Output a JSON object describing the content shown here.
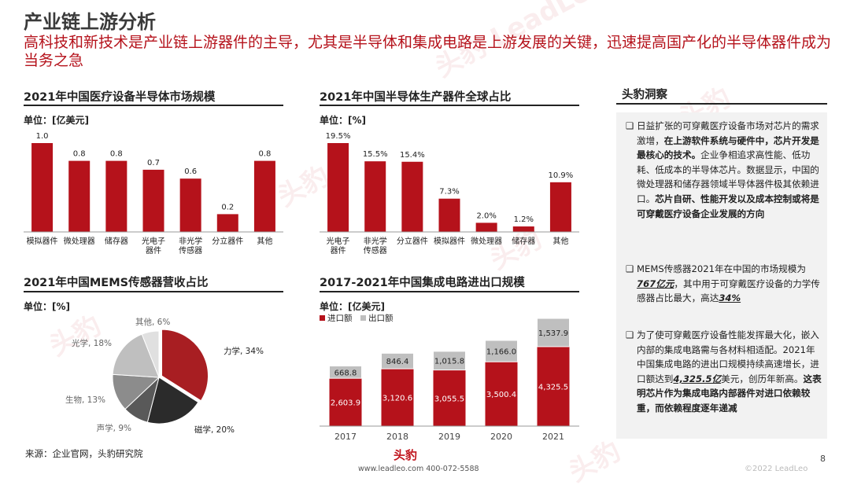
{
  "title": "产业链上游分析",
  "subtitle": "高科技和新技术是产业链上游器件的主导，尤其是半导体和集成电路是上游发展的关键，迅速提高国产化的半导体器件成为当务之急",
  "colors": {
    "primary": "#b5121b",
    "gray": "#b3b3b3",
    "dark": "#3d3d3d"
  },
  "charts_text": {
    "c1_title": "2021年中国医疗设备半导体市场规模",
    "c1_unit": "单位：[亿美元]",
    "c2_title": "2021年中国半导体生产器件全球占比",
    "c2_unit": "单位：[%]",
    "c3_title": "2021年中国MEMS传感器营收占比",
    "c3_unit": "单位：[%]",
    "c4_title": "2017-2021年中国集成电路进出口规模",
    "c4_unit": "单位：[亿美元]"
  },
  "chart_data": [
    {
      "type": "bar",
      "title": "2021年中国医疗设备半导体市场规模",
      "categories": [
        "模拟器件",
        "微处理器",
        "储存器",
        "光电子\n器件",
        "非光学\n传感器",
        "分立器件",
        "其他"
      ],
      "values": [
        1.0,
        0.8,
        0.8,
        0.7,
        0.6,
        0.2,
        0.8
      ],
      "labels": [
        "1.0",
        "0.8",
        "0.8",
        "0.7",
        "0.6",
        "0.2",
        "0.8"
      ],
      "ylim": [
        0,
        1.0
      ]
    },
    {
      "type": "bar",
      "title": "2021年中国半导体生产器件全球占比",
      "categories": [
        "光电子\n器件",
        "非光学\n传感器",
        "分立器件",
        "模拟器件",
        "微处理器",
        "储存器",
        "其他"
      ],
      "values": [
        19.5,
        15.5,
        15.4,
        7.3,
        2.0,
        1.2,
        10.9
      ],
      "labels": [
        "19.5%",
        "15.5%",
        "15.4%",
        "7.3%",
        "2.0%",
        "1.2%",
        "10.9%"
      ],
      "ylim": [
        0,
        19.5
      ]
    },
    {
      "type": "pie",
      "title": "2021年中国MEMS传感器营收占比",
      "slices": [
        {
          "name": "力学",
          "value": 34,
          "label": "力学, 34%",
          "color": "#a81e22"
        },
        {
          "name": "磁学",
          "value": 20,
          "label": "磁学, 20%",
          "color": "#2b2b2b"
        },
        {
          "name": "声学",
          "value": 9,
          "label": "声学, 9%",
          "color": "#595959"
        },
        {
          "name": "生物",
          "value": 13,
          "label": "生物, 13%",
          "color": "#8c8c8c"
        },
        {
          "name": "光学",
          "value": 18,
          "label": "光学, 18%",
          "color": "#bfbfbf"
        },
        {
          "name": "其他",
          "value": 6,
          "label": "其他, 6%",
          "color": "#e0e0e0"
        }
      ]
    },
    {
      "type": "bar",
      "title": "2017-2021年中国集成电路进出口规模",
      "stacked": true,
      "categories": [
        "2017",
        "2018",
        "2019",
        "2020",
        "2021"
      ],
      "series": [
        {
          "name": "进口额",
          "values": [
            2603.9,
            3120.6,
            3055.5,
            3500.4,
            4325.5
          ],
          "labels": [
            "2,603.9",
            "3,120.6",
            "3,055.5",
            "3,500.4",
            "4,325.5"
          ],
          "color": "#b5121b"
        },
        {
          "name": "出口额",
          "values": [
            668.8,
            846.4,
            1015.8,
            1166.0,
            1537.9
          ],
          "labels": [
            "668.8",
            "846.4",
            "1,015.8",
            "1,166.0",
            "1,537.9"
          ],
          "color": "#bfbfbf"
        }
      ],
      "legend": "top-left"
    }
  ],
  "insight": {
    "title": "头豹洞察",
    "items": [
      [
        {
          "t": "日益扩张的可穿戴医疗设备市场对芯片的需求激增，",
          "s": ""
        },
        {
          "t": "在上游软件系统与硬件中，芯片开发是最核心的技术。",
          "s": "b"
        },
        {
          "t": "企业争相追求高性能、低功耗、低成本的半导体芯片。数据显示，中国的微处理器和储存器领域半导体器件极其依赖进口。",
          "s": ""
        },
        {
          "t": "芯片自研、性能开发以及成本控制或将是可穿戴医疗设备企业发展的方向",
          "s": "b"
        }
      ],
      [
        {
          "t": "MEMS传感器2021年在中国的市场规模为",
          "s": ""
        },
        {
          "t": "767亿元",
          "s": "em"
        },
        {
          "t": "，其中用于可穿戴医疗设备的力学传感器占比最大，高达",
          "s": ""
        },
        {
          "t": "34%",
          "s": "em"
        }
      ],
      [
        {
          "t": "为了使可穿戴医疗设备性能发挥最大化，嵌入内部的集成电路需与各材料相适配。2021年中国集成电路的进出口规模持续高速增长，进口额达到",
          "s": ""
        },
        {
          "t": "4,325.5亿",
          "s": "em"
        },
        {
          "t": "美元，创历年新高。",
          "s": ""
        },
        {
          "t": "这表明芯片作为集成电路内部器件对进口依赖较重，而依赖程度逐年递减",
          "s": "b"
        }
      ]
    ]
  },
  "footer": {
    "source": "来源：企业官网，头豹研究院",
    "page": "8",
    "copyright": "©2022 LeadLeo",
    "logo": "头豹",
    "contact": "www.leadleo.com   400-072-5588"
  }
}
